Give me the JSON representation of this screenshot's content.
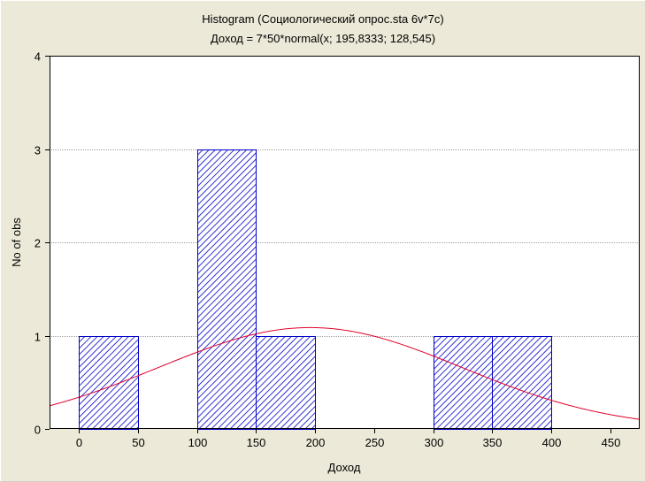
{
  "chart_data": {
    "type": "bar",
    "title": "Histogram (Социологический опрос.sta 6v*7c)",
    "subtitle": "Доход = 7*50*normal(x; 195,8333; 128,545)",
    "xlabel": "Доход",
    "ylabel": "No of obs",
    "xlim": [
      -25,
      475
    ],
    "ylim": [
      0,
      4
    ],
    "x_ticks": [
      0,
      50,
      100,
      150,
      200,
      250,
      300,
      350,
      400,
      450
    ],
    "y_ticks": [
      0,
      1,
      2,
      3,
      4
    ],
    "bins": [
      {
        "from": 0,
        "to": 50,
        "count": 1
      },
      {
        "from": 100,
        "to": 150,
        "count": 3
      },
      {
        "from": 150,
        "to": 200,
        "count": 1
      },
      {
        "from": 300,
        "to": 350,
        "count": 1
      },
      {
        "from": 350,
        "to": 400,
        "count": 1
      }
    ],
    "fit": {
      "n": 7,
      "bin_width": 50,
      "mean": 195.8333,
      "sd": 128.545
    },
    "grid": true,
    "colors": {
      "bar_edge": "#0000c8",
      "hatch": "#0000c8",
      "fit_line": "#e0002a",
      "grid": "#a0a0a0",
      "plot_bg": "#ffffff",
      "frame_bg": "#ece9d8"
    }
  }
}
